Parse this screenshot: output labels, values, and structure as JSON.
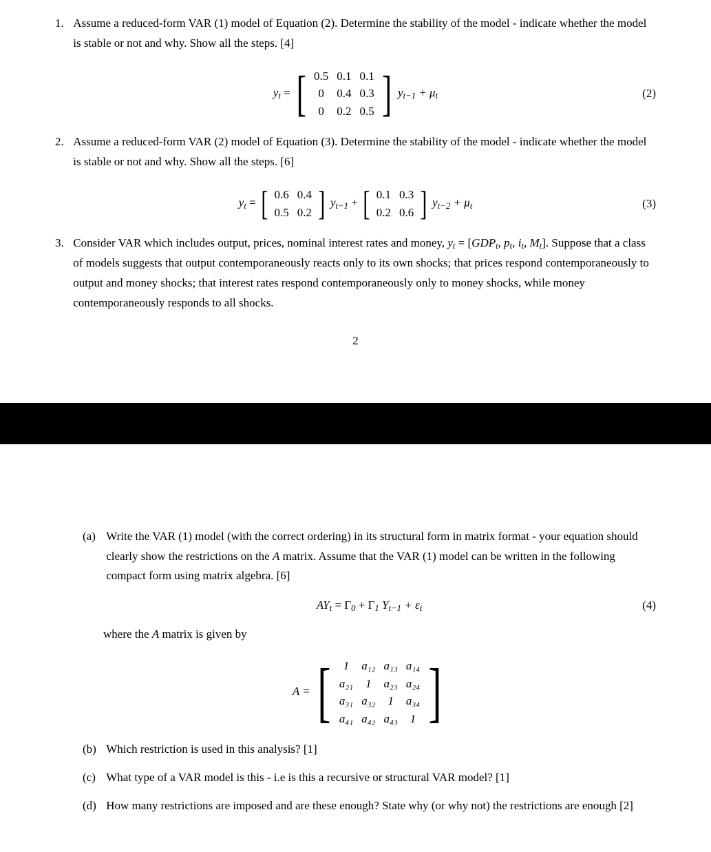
{
  "q1": {
    "number": "1.",
    "text": "Assume a reduced-form VAR (1) model of Equation (2). Determine the stability of the model - indicate whether the model is stable or not and why. Show all the steps. [4]",
    "eq_label": "(2)",
    "lhs": "y",
    "lhs_sub": "t",
    "eq": " = ",
    "rhs_var": "y",
    "rhs_sub": "t−1",
    "plus": " + μ",
    "mu_sub": "t",
    "matrix": {
      "rows": [
        [
          "0.5",
          "0.1",
          "0.1"
        ],
        [
          "0",
          "0.4",
          "0.3"
        ],
        [
          "0",
          "0.2",
          "0.5"
        ]
      ],
      "bracket_size": "72px"
    }
  },
  "q2": {
    "number": "2.",
    "text": "Assume a reduced-form VAR (2) model of Equation (3). Determine the stability of the model - indicate whether the model is stable or not and why. Show all the steps. [6]",
    "eq_label": "(3)",
    "lhs": "y",
    "lhs_sub": "t",
    "eq": " = ",
    "m1": {
      "rows": [
        [
          "0.6",
          "0.4"
        ],
        [
          "0.5",
          "0.2"
        ]
      ],
      "bracket_size": "50px"
    },
    "mid1_var": "y",
    "mid1_sub": "t−1",
    "plus1": " + ",
    "m2": {
      "rows": [
        [
          "0.1",
          "0.3"
        ],
        [
          "0.2",
          "0.6"
        ]
      ],
      "bracket_size": "50px"
    },
    "mid2_var": "y",
    "mid2_sub": "t−2",
    "plus2": " + μ",
    "mu_sub": "t"
  },
  "q3": {
    "number": "3.",
    "text_pre": "Consider VAR which includes output, prices, nominal interest rates and money, ",
    "yvar": "y",
    "ysub": "t",
    "eq": " = [",
    "vars": "GDP",
    "vars_sub": "t",
    "comma": ", p",
    "p_sub": "t",
    "comma2": ", i",
    "i_sub": "t",
    "comma3": ", M",
    "m_sub": "t",
    "close": "].",
    "text_post": " Suppose that a class of models suggests that output contemporaneously reacts only to its own shocks; that prices respond contemporaneously to output and money shocks; that interest rates respond contemporaneously only to money shocks, while money contemporaneously responds to all shocks."
  },
  "page_number": "2",
  "q3a": {
    "label": "(a)",
    "text": "Write the VAR (1) model (with the correct ordering) in its structural form in matrix format - your equation should clearly show the restrictions on the ",
    "Avar": "A",
    "text2": " matrix. Assume that the VAR (1) model can be written in the following compact form using matrix algebra. [6]",
    "eq_label": "(4)",
    "eq_text_A": "AY",
    "eq_Ysub": "t",
    "eq_eq": " = Γ",
    "eq_g0sub": "0",
    "eq_plus1": " + Γ",
    "eq_g1sub": "1",
    "eq_Y2": "Y",
    "eq_Y2sub": "t−1",
    "eq_plus2": " + ε",
    "eq_esub": "t",
    "where_text": "where the ",
    "where_A": "A",
    "where_text2": " matrix is given by",
    "Amatrix": {
      "lhs": "A = ",
      "rows": [
        [
          "1",
          "a₁₂",
          "a₁₃",
          "a₁₄"
        ],
        [
          "a₂₁",
          "1",
          "a₂₃",
          "a₂₄"
        ],
        [
          "a₃₁",
          "a₃₂",
          "1",
          "a₃₄"
        ],
        [
          "a₄₁",
          "a₄₂",
          "a₄₃",
          "1"
        ]
      ],
      "bracket_size": "96px"
    }
  },
  "q3b": {
    "label": "(b)",
    "text": "Which restriction is used in this analysis? [1]"
  },
  "q3c": {
    "label": "(c)",
    "text": "What type of a VAR model is this - i.e is this a recursive or structural VAR model? [1]"
  },
  "q3d": {
    "label": "(d)",
    "text": "How many restrictions are imposed and are these enough? State why (or why not) the restrictions are enough [2]"
  }
}
